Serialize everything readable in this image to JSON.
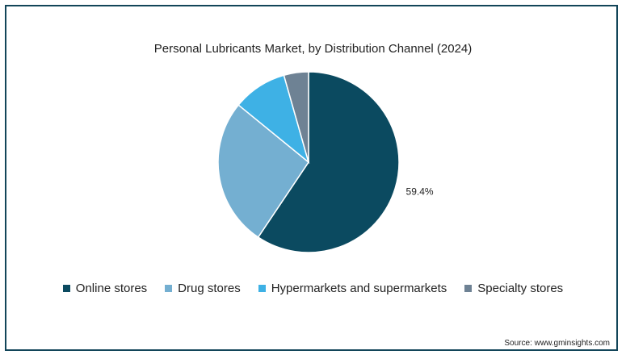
{
  "chart_data": {
    "type": "pie",
    "title": "Personal Lubricants Market, by Distribution Channel (2024)",
    "categories": [
      "Online stores",
      "Drug stores",
      "Hypermarkets and supermarkets",
      "Specialty stores"
    ],
    "values": [
      59.4,
      26.5,
      9.7,
      4.4
    ],
    "colors": [
      "#0b4a60",
      "#74afd1",
      "#3eb1e5",
      "#6e8294"
    ],
    "data_labels": [
      "59.4%",
      "",
      "",
      ""
    ],
    "legend_position": "bottom"
  },
  "source_text": "Source: www.gminsights.com"
}
